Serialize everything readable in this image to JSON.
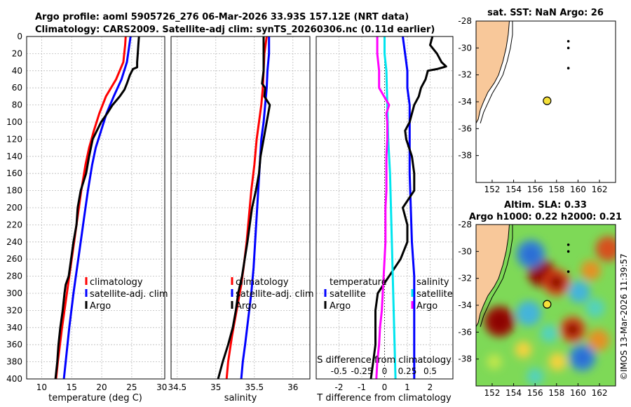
{
  "header": {
    "line1": "Argo profile: aoml 5905726_276 06-Mar-2026 33.93S 157.12E (NRT data)",
    "line2": "Climatology: CARS2009. Satellite-adj clim: synTS_20260306.nc (0.11d earlier)"
  },
  "stamp": "©IMOS 13-Mar-2026 11:39:57",
  "colors": {
    "climatology": "#ff0000",
    "satellite": "#0000ff",
    "argo": "#000000",
    "sat_temp": "#00e5ee",
    "sal_diff": "#ff00ff",
    "land": "#f8c89a",
    "float": "#f5e03a"
  },
  "chart_data": [
    {
      "type": "line",
      "id": "temperature",
      "xlabel": "temperature (deg C)",
      "ylabel": "",
      "xlim": [
        7.5,
        30.5
      ],
      "ylim": [
        400,
        0
      ],
      "xticks": [
        "10",
        "15",
        "20",
        "25",
        "30"
      ],
      "xtick_values": [
        10,
        15,
        20,
        25,
        30
      ],
      "yticks": [
        "0",
        "20",
        "40",
        "60",
        "80",
        "100",
        "120",
        "140",
        "160",
        "180",
        "200",
        "220",
        "240",
        "260",
        "280",
        "300",
        "320",
        "340",
        "360",
        "380",
        "400"
      ],
      "ytick_values": [
        0,
        20,
        40,
        60,
        80,
        100,
        120,
        140,
        160,
        180,
        200,
        220,
        240,
        260,
        280,
        300,
        320,
        340,
        360,
        380,
        400
      ],
      "legend": [
        "climatology",
        "satellite-adj. clim",
        "Argo"
      ],
      "series": [
        {
          "name": "climatology",
          "color": "#ff0000",
          "depth": [
            0,
            10,
            30,
            50,
            70,
            90,
            110,
            130,
            150,
            180,
            210,
            250,
            280,
            300,
            340,
            380,
            400
          ],
          "values": [
            24.0,
            23.9,
            23.6,
            22.4,
            20.7,
            19.6,
            18.7,
            17.9,
            17.3,
            16.6,
            16.0,
            15.2,
            14.6,
            14.2,
            13.4,
            12.7,
            12.4
          ]
        },
        {
          "name": "satellite-adj. clim",
          "color": "#0000ff",
          "depth": [
            0,
            10,
            30,
            50,
            70,
            90,
            110,
            130,
            150,
            180,
            210,
            250,
            280,
            300,
            340,
            380,
            400
          ],
          "values": [
            24.8,
            24.6,
            24.2,
            23.3,
            22.0,
            20.8,
            19.9,
            19.0,
            18.4,
            17.7,
            17.1,
            16.3,
            15.7,
            15.3,
            14.6,
            14.0,
            13.7
          ]
        },
        {
          "name": "Argo",
          "color": "#000000",
          "depth": [
            0,
            10,
            20,
            30,
            36,
            38,
            45,
            55,
            62,
            70,
            80,
            90,
            100,
            110,
            120,
            140,
            160,
            180,
            200,
            220,
            240,
            260,
            280,
            290,
            300,
            320,
            340,
            360,
            380,
            400
          ],
          "values": [
            26.2,
            26.1,
            26.0,
            25.9,
            25.9,
            25.2,
            24.7,
            24.2,
            23.8,
            23.0,
            21.8,
            20.9,
            19.9,
            19.2,
            18.5,
            17.9,
            17.4,
            16.5,
            16.0,
            15.8,
            15.3,
            14.9,
            14.5,
            14.0,
            13.8,
            13.5,
            13.1,
            12.8,
            12.6,
            12.3
          ]
        }
      ]
    },
    {
      "type": "line",
      "id": "salinity",
      "xlabel": "salinity",
      "xlim": [
        34.42,
        36.22
      ],
      "ylim": [
        400,
        0
      ],
      "xticks": [
        "34.5",
        "35",
        "35.5",
        "36"
      ],
      "xtick_values": [
        34.5,
        35,
        35.5,
        36
      ],
      "legend": [
        "climatology",
        "satellite-adj. clim",
        "Argo"
      ],
      "series": [
        {
          "name": "climatology",
          "color": "#ff0000",
          "depth": [
            0,
            20,
            40,
            60,
            80,
            100,
            120,
            150,
            180,
            210,
            240,
            270,
            290,
            300,
            320,
            350,
            380,
            400
          ],
          "values": [
            35.66,
            35.63,
            35.62,
            35.61,
            35.59,
            35.56,
            35.53,
            35.5,
            35.46,
            35.43,
            35.4,
            35.36,
            35.33,
            35.31,
            35.27,
            35.21,
            35.16,
            35.14
          ]
        },
        {
          "name": "satellite-adj. clim",
          "color": "#0000ff",
          "depth": [
            0,
            20,
            40,
            60,
            80,
            100,
            120,
            150,
            180,
            210,
            240,
            270,
            300,
            330,
            360,
            380,
            400
          ],
          "values": [
            35.69,
            35.69,
            35.67,
            35.66,
            35.64,
            35.62,
            35.59,
            35.57,
            35.55,
            35.53,
            35.51,
            35.49,
            35.46,
            35.42,
            35.38,
            35.35,
            35.33
          ]
        },
        {
          "name": "Argo",
          "color": "#000000",
          "depth": [
            0,
            20,
            40,
            55,
            60,
            70,
            80,
            90,
            100,
            120,
            140,
            160,
            180,
            200,
            240,
            280,
            300,
            320,
            340,
            360,
            380,
            400
          ],
          "values": [
            35.62,
            35.62,
            35.62,
            35.6,
            35.64,
            35.63,
            35.7,
            35.68,
            35.66,
            35.62,
            35.58,
            35.56,
            35.52,
            35.47,
            35.41,
            35.34,
            35.29,
            35.26,
            35.22,
            35.16,
            35.09,
            35.03
          ]
        }
      ]
    },
    {
      "type": "line",
      "id": "difference",
      "xlabel": "T difference from climatology",
      "top_axis_label": "S difference from climatology",
      "xlim": [
        -3.0,
        3.0
      ],
      "ylim": [
        400,
        0
      ],
      "xticks": [
        "-2",
        "-1",
        "0",
        "1",
        "2"
      ],
      "xtick_values": [
        -2,
        -1,
        0,
        1,
        2
      ],
      "s_ticks": [
        "-0.5",
        "-0.25",
        "0",
        "0.25",
        "0.5"
      ],
      "s_tick_values": [
        -0.5,
        -0.25,
        0,
        0.25,
        0.5
      ],
      "legend_left_title": "temperature",
      "legend_right_title": "salinity",
      "legend": [
        "satellite",
        "Argo",
        "satellite",
        "Argo"
      ],
      "series": [
        {
          "name": "temperature satellite",
          "color": "#0000ff",
          "depth": [
            0,
            20,
            40,
            60,
            80,
            100,
            120,
            140,
            160,
            200,
            240,
            280,
            320,
            360,
            400
          ],
          "values": [
            0.8,
            0.9,
            1.0,
            1.0,
            1.1,
            1.1,
            1.1,
            1.1,
            1.1,
            1.15,
            1.2,
            1.3,
            1.3,
            1.3,
            1.3
          ]
        },
        {
          "name": "temperature Argo",
          "color": "#000000",
          "depth": [
            0,
            10,
            20,
            30,
            35,
            38,
            40,
            50,
            60,
            70,
            80,
            90,
            100,
            110,
            120,
            140,
            160,
            180,
            200,
            220,
            240,
            260,
            280,
            300,
            320,
            340,
            360,
            380,
            400
          ],
          "values": [
            2.1,
            2.0,
            2.3,
            2.5,
            2.7,
            2.3,
            1.9,
            1.8,
            1.6,
            1.5,
            1.3,
            1.2,
            1.1,
            0.9,
            0.95,
            1.2,
            1.3,
            1.3,
            0.8,
            1.0,
            1.0,
            0.7,
            0.2,
            -0.3,
            -0.4,
            -0.4,
            -0.4,
            -0.5,
            -0.6
          ]
        },
        {
          "name": "salinity satellite",
          "color": "#00e5ee",
          "depth": [
            0,
            20,
            40,
            80,
            120,
            160,
            200,
            240,
            280,
            320,
            360,
            400
          ],
          "values": [
            0.0,
            0.0,
            0.02,
            0.03,
            0.04,
            0.06,
            0.07,
            0.08,
            0.09,
            0.1,
            0.11,
            0.12
          ]
        },
        {
          "name": "salinity Argo",
          "color": "#ff00ff",
          "depth": [
            0,
            20,
            40,
            60,
            80,
            90,
            100,
            120,
            140,
            160,
            180,
            200,
            220,
            240,
            260,
            280,
            300,
            320,
            340,
            360,
            380,
            400
          ],
          "values": [
            -0.08,
            -0.08,
            -0.06,
            -0.06,
            0.05,
            0.02,
            0.03,
            0.03,
            0.02,
            0.02,
            0.02,
            0.01,
            0.01,
            0.01,
            0.0,
            -0.01,
            -0.02,
            -0.03,
            -0.05,
            -0.06,
            -0.08,
            -0.09
          ]
        }
      ]
    },
    {
      "type": "scatter",
      "id": "map-sst",
      "title": "sat. SST: NaN Argo: 26",
      "xlim": [
        150.5,
        163.5
      ],
      "ylim": [
        -40,
        -28
      ],
      "xticks": [
        "152",
        "154",
        "156",
        "158",
        "160",
        "162"
      ],
      "xtick_values": [
        152,
        154,
        156,
        158,
        160,
        162
      ],
      "yticks": [
        "-28",
        "-30",
        "-32",
        "-34",
        "-36",
        "-38"
      ],
      "ytick_values": [
        -28,
        -30,
        -32,
        -34,
        -36,
        -38
      ],
      "float_position": {
        "lon": 157.12,
        "lat": -33.93
      },
      "other_floats": [
        {
          "lon": 159.1,
          "lat": -29.5
        },
        {
          "lon": 159.1,
          "lat": -30.0
        },
        {
          "lon": 159.1,
          "lat": -31.5
        }
      ]
    },
    {
      "type": "heatmap",
      "id": "map-sla",
      "title_line1": "Altim. SLA: 0.33",
      "title_line2": "Argo h1000: 0.22 h2000: 0.21",
      "xlim": [
        150.5,
        163.5
      ],
      "ylim": [
        -40,
        -28
      ],
      "xticks": [
        "152",
        "154",
        "156",
        "158",
        "160",
        "162"
      ],
      "xtick_values": [
        152,
        154,
        156,
        158,
        160,
        162
      ],
      "yticks": [
        "-28",
        "-30",
        "-32",
        "-34",
        "-36",
        "-38"
      ],
      "ytick_values": [
        -28,
        -30,
        -32,
        -34,
        -36,
        -38
      ],
      "float_position": {
        "lon": 157.12,
        "lat": -33.93
      },
      "other_floats": [
        {
          "lon": 159.1,
          "lat": -29.5
        },
        {
          "lon": 159.1,
          "lat": -30.0
        },
        {
          "lon": 159.1,
          "lat": -31.5
        }
      ],
      "anomaly_blobs": [
        {
          "lon": 152.7,
          "lat": -35.2,
          "value": 1.0
        },
        {
          "lon": 156.6,
          "lat": -31.6,
          "value": 0.85
        },
        {
          "lon": 158.0,
          "lat": -32.3,
          "value": 0.8
        },
        {
          "lon": 159.5,
          "lat": -35.8,
          "value": 0.75
        },
        {
          "lon": 161.9,
          "lat": -36.6,
          "value": 0.55
        },
        {
          "lon": 162.8,
          "lat": -29.8,
          "value": 0.7
        },
        {
          "lon": 161.2,
          "lat": -31.4,
          "value": 0.45
        },
        {
          "lon": 158.1,
          "lat": -38.2,
          "value": 0.35
        },
        {
          "lon": 154.9,
          "lat": -37.3,
          "value": 0.3
        },
        {
          "lon": 155.6,
          "lat": -30.2,
          "value": -0.9
        },
        {
          "lon": 155.4,
          "lat": -34.6,
          "value": -0.7
        },
        {
          "lon": 160.1,
          "lat": -33.0,
          "value": -0.55
        },
        {
          "lon": 160.4,
          "lat": -37.9,
          "value": -0.8
        },
        {
          "lon": 157.3,
          "lat": -36.1,
          "value": -0.35
        },
        {
          "lon": 161.6,
          "lat": -34.2,
          "value": -0.4
        },
        {
          "lon": 156.0,
          "lat": -39.3,
          "value": -0.3
        },
        {
          "lon": 152.2,
          "lat": -38.2,
          "value": -0.2
        }
      ]
    }
  ]
}
